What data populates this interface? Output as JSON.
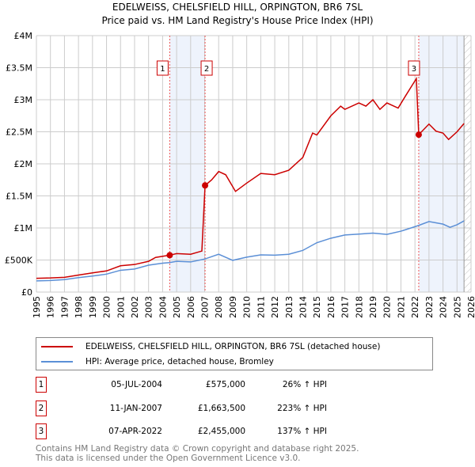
{
  "chart_data": {
    "type": "line",
    "title": "EDELWEISS, CHELSFIELD HILL, ORPINGTON, BR6 7SL",
    "subtitle": "Price paid vs. HM Land Registry's House Price Index (HPI)",
    "xlim": [
      1995,
      2026
    ],
    "ylim": [
      0,
      4000000
    ],
    "y_ticks": [
      {
        "v": 0,
        "label": "£0"
      },
      {
        "v": 500000,
        "label": "£500K"
      },
      {
        "v": 1000000,
        "label": "£1M"
      },
      {
        "v": 1500000,
        "label": "£1.5M"
      },
      {
        "v": 2000000,
        "label": "£2M"
      },
      {
        "v": 2500000,
        "label": "£2.5M"
      },
      {
        "v": 3000000,
        "label": "£3M"
      },
      {
        "v": 3500000,
        "label": "£3.5M"
      },
      {
        "v": 4000000,
        "label": "£4M"
      }
    ],
    "x_ticks": [
      "1995",
      "1996",
      "1997",
      "1998",
      "1999",
      "2000",
      "2001",
      "2002",
      "2003",
      "2004",
      "2005",
      "2006",
      "2007",
      "2008",
      "2009",
      "2010",
      "2011",
      "2012",
      "2013",
      "2014",
      "2015",
      "2016",
      "2017",
      "2018",
      "2019",
      "2020",
      "2021",
      "2022",
      "2023",
      "2024",
      "2025",
      "2026"
    ],
    "grid": true,
    "series": [
      {
        "name": "EDELWEISS, CHELSFIELD HILL, ORPINGTON, BR6 7SL (detached house)",
        "color": "#cc0000",
        "points": [
          [
            1995,
            215000
          ],
          [
            1996,
            220000
          ],
          [
            1997,
            230000
          ],
          [
            1998,
            265000
          ],
          [
            1999,
            300000
          ],
          [
            2000,
            330000
          ],
          [
            2001,
            410000
          ],
          [
            2002,
            430000
          ],
          [
            2003,
            480000
          ],
          [
            2003.5,
            540000
          ],
          [
            2004.5,
            575000
          ],
          [
            2005,
            600000
          ],
          [
            2006,
            590000
          ],
          [
            2006.8,
            640000
          ],
          [
            2007.03,
            1663500
          ],
          [
            2007.5,
            1750000
          ],
          [
            2008,
            1880000
          ],
          [
            2008.5,
            1830000
          ],
          [
            2009.2,
            1570000
          ],
          [
            2010,
            1700000
          ],
          [
            2011,
            1850000
          ],
          [
            2012,
            1830000
          ],
          [
            2013,
            1900000
          ],
          [
            2014,
            2100000
          ],
          [
            2014.7,
            2480000
          ],
          [
            2015,
            2450000
          ],
          [
            2016,
            2750000
          ],
          [
            2016.7,
            2900000
          ],
          [
            2017,
            2850000
          ],
          [
            2018,
            2950000
          ],
          [
            2018.5,
            2900000
          ],
          [
            2019,
            3000000
          ],
          [
            2019.5,
            2850000
          ],
          [
            2020,
            2950000
          ],
          [
            2020.8,
            2870000
          ],
          [
            2021.3,
            3050000
          ],
          [
            2022.1,
            3330000
          ],
          [
            2022.27,
            2455000
          ],
          [
            2023,
            2620000
          ],
          [
            2023.5,
            2510000
          ],
          [
            2024,
            2480000
          ],
          [
            2024.4,
            2380000
          ],
          [
            2025,
            2500000
          ],
          [
            2025.5,
            2630000
          ]
        ]
      },
      {
        "name": "HPI: Average price, detached house, Bromley",
        "color": "#5b8fd6",
        "points": [
          [
            1995,
            175000
          ],
          [
            1996,
            180000
          ],
          [
            1997,
            195000
          ],
          [
            1998,
            225000
          ],
          [
            1999,
            250000
          ],
          [
            2000,
            280000
          ],
          [
            2001,
            340000
          ],
          [
            2002,
            360000
          ],
          [
            2003,
            420000
          ],
          [
            2004,
            450000
          ],
          [
            2004.5,
            460000
          ],
          [
            2005,
            480000
          ],
          [
            2006,
            470000
          ],
          [
            2007,
            515000
          ],
          [
            2008,
            590000
          ],
          [
            2009,
            495000
          ],
          [
            2010,
            545000
          ],
          [
            2011,
            580000
          ],
          [
            2012,
            575000
          ],
          [
            2013,
            590000
          ],
          [
            2014,
            650000
          ],
          [
            2015,
            770000
          ],
          [
            2016,
            840000
          ],
          [
            2017,
            890000
          ],
          [
            2018,
            905000
          ],
          [
            2019,
            920000
          ],
          [
            2020,
            900000
          ],
          [
            2021,
            950000
          ],
          [
            2022,
            1020000
          ],
          [
            2022.27,
            1040000
          ],
          [
            2023,
            1100000
          ],
          [
            2024,
            1060000
          ],
          [
            2024.5,
            1010000
          ],
          [
            2025,
            1050000
          ],
          [
            2025.5,
            1110000
          ]
        ]
      }
    ],
    "sales": [
      {
        "n": "1",
        "x": 2004.51,
        "y": 575000,
        "date": "05-JUL-2004",
        "price": "£575,000",
        "hpi": "26% ↑ HPI"
      },
      {
        "n": "2",
        "x": 2007.03,
        "y": 1663500,
        "date": "11-JAN-2007",
        "price": "£1,663,500",
        "hpi": "223% ↑ HPI"
      },
      {
        "n": "3",
        "x": 2022.27,
        "y": 2455000,
        "date": "07-APR-2022",
        "price": "£2,455,000",
        "hpi": "137% ↑ HPI"
      }
    ],
    "shaded": [
      [
        2004.51,
        2007.03
      ],
      [
        2022.27,
        2025.5
      ]
    ],
    "hatched_from": 2025.5
  },
  "footer": [
    "Contains HM Land Registry data © Crown copyright and database right 2025.",
    "This data is licensed under the Open Government Licence v3.0."
  ]
}
